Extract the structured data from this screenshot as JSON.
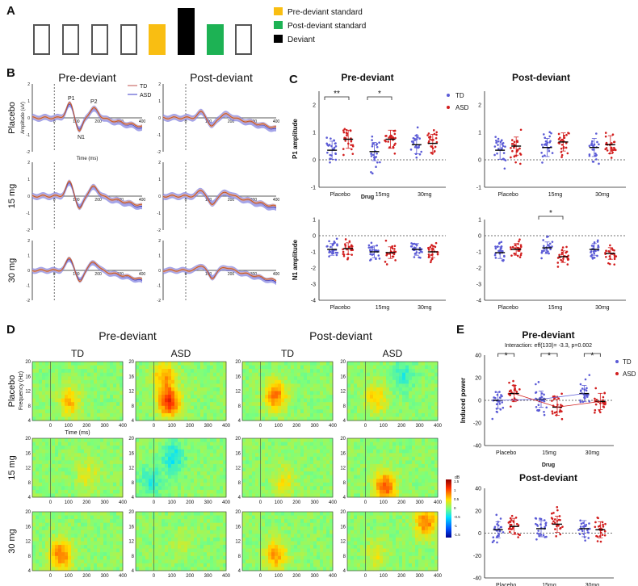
{
  "panel_a": {
    "letter": "A",
    "sequence": [
      "standard",
      "standard",
      "standard",
      "standard",
      "pre-deviant",
      "deviant",
      "post-deviant",
      "standard"
    ],
    "legend": [
      {
        "label": "Pre-deviant standard",
        "color": "#F9BE12"
      },
      {
        "label": "Post-deviant standard",
        "color": "#1DB254"
      },
      {
        "label": "Deviant",
        "color": "#000000"
      }
    ]
  },
  "panel_b": {
    "letter": "B",
    "col_titles": [
      "Pre-deviant",
      "Post-deviant"
    ],
    "rows": [
      "Placebo",
      "15 mg",
      "30 mg"
    ],
    "ylabel": "Amplitude (uV)",
    "xlabel": "Time (ms)",
    "yticks": [
      "2",
      "1",
      "0",
      "-1",
      "-2"
    ],
    "xticks": [
      "0",
      "100",
      "200",
      "300",
      "400"
    ],
    "legend": [
      {
        "label": "TD",
        "color": "#C0504D"
      },
      {
        "label": "ASD",
        "color": "#3B3BC8"
      }
    ],
    "peak_labels": [
      "P1",
      "P2",
      "N1"
    ],
    "colors": {
      "td": "#C8561E",
      "asd": "#2D2DB8",
      "asd_band": "#7E7EE0",
      "td_band": "#F0B49A"
    }
  },
  "panel_c": {
    "letter": "C",
    "titles": [
      "Pre-deviant",
      "Post-deviant"
    ],
    "xlabel": "Drug",
    "categories": [
      "Placebo",
      "15mg",
      "30mg"
    ],
    "legend": [
      {
        "label": "TD",
        "color": "#5B5BD6"
      },
      {
        "label": "ASD",
        "color": "#D21E1E"
      }
    ],
    "p1": {
      "ylabel": "P1 amplitude",
      "yticks": [
        "2",
        "1",
        "0",
        "-1"
      ],
      "ylim": [
        -1,
        2.5
      ]
    },
    "n1": {
      "ylabel": "N1 amplitude",
      "yticks": [
        "1",
        "0",
        "-1",
        "-2",
        "-3",
        "-4"
      ],
      "ylim": [
        -4,
        1
      ]
    },
    "sig": {
      "pre_p1": [
        "**",
        "*"
      ],
      "post_n1": [
        "*"
      ]
    }
  },
  "panel_d": {
    "letter": "D",
    "group_titles": [
      "Pre-deviant",
      "Post-deviant"
    ],
    "col_titles": [
      "TD",
      "ASD",
      "TD",
      "ASD"
    ],
    "rows": [
      "Placebo",
      "15 mg",
      "30 mg"
    ],
    "ylabel": "Frequency (Hz)",
    "xlabel": "Time (ms)",
    "yticks": [
      "20",
      "16",
      "12",
      "8",
      "4"
    ],
    "xticks": [
      "0",
      "100",
      "200",
      "300",
      "400"
    ],
    "colorbar": {
      "unit": "dB",
      "ticks": [
        "1.5",
        "1",
        "0.5",
        "0",
        "-0.5",
        "-1",
        "-1.5"
      ]
    }
  },
  "panel_e": {
    "letter": "E",
    "titles": [
      "Pre-deviant",
      "Post-deviant"
    ],
    "interaction": "Interaction: eff(133)= -3.3, p=0.002",
    "ylabel": "Induced power",
    "xlabel": "Drug",
    "categories": [
      "Placebo",
      "15mg",
      "30mg"
    ],
    "yticks": [
      "40",
      "20",
      "0",
      "-20",
      "-40"
    ],
    "ylim": [
      -40,
      40
    ],
    "legend": [
      {
        "label": "TD",
        "color": "#5B5BD6"
      },
      {
        "label": "ASD",
        "color": "#D21E1E"
      }
    ],
    "sig": [
      "*",
      "*",
      "*"
    ]
  },
  "chart_data": [
    {
      "type": "scatter",
      "panel": "C",
      "subplot": "Pre-deviant P1",
      "categories": [
        "Placebo",
        "15mg",
        "30mg"
      ],
      "series": [
        {
          "name": "TD",
          "means": [
            0.35,
            0.3,
            0.55
          ]
        },
        {
          "name": "ASD",
          "means": [
            0.75,
            0.75,
            0.6
          ]
        }
      ],
      "ylabel": "P1 amplitude",
      "ylim": [
        -1,
        2.5
      ]
    },
    {
      "type": "scatter",
      "panel": "C",
      "subplot": "Post-deviant P1",
      "categories": [
        "Placebo",
        "15mg",
        "30mg"
      ],
      "series": [
        {
          "name": "TD",
          "means": [
            0.35,
            0.45,
            0.45
          ]
        },
        {
          "name": "ASD",
          "means": [
            0.5,
            0.65,
            0.55
          ]
        }
      ],
      "ylabel": "P1 amplitude",
      "ylim": [
        -1,
        2.5
      ]
    },
    {
      "type": "scatter",
      "panel": "C",
      "subplot": "Pre-deviant N1",
      "categories": [
        "Placebo",
        "15mg",
        "30mg"
      ],
      "series": [
        {
          "name": "TD",
          "means": [
            -0.85,
            -1.0,
            -0.85
          ]
        },
        {
          "name": "ASD",
          "means": [
            -0.8,
            -1.05,
            -1.0
          ]
        }
      ],
      "ylabel": "N1 amplitude",
      "ylim": [
        -4,
        1
      ]
    },
    {
      "type": "scatter",
      "panel": "C",
      "subplot": "Post-deviant N1",
      "categories": [
        "Placebo",
        "15mg",
        "30mg"
      ],
      "series": [
        {
          "name": "TD",
          "means": [
            -1.05,
            -0.75,
            -0.85
          ]
        },
        {
          "name": "ASD",
          "means": [
            -0.85,
            -1.3,
            -1.1
          ]
        }
      ],
      "ylabel": "N1 amplitude",
      "ylim": [
        -4,
        1
      ]
    },
    {
      "type": "scatter",
      "panel": "E",
      "subplot": "Pre-deviant",
      "categories": [
        "Placebo",
        "15mg",
        "30mg"
      ],
      "series": [
        {
          "name": "TD",
          "means": [
            0,
            1,
            6
          ]
        },
        {
          "name": "ASD",
          "means": [
            6,
            -6,
            -1
          ]
        }
      ],
      "ylabel": "Induced power",
      "ylim": [
        -40,
        40
      ]
    },
    {
      "type": "scatter",
      "panel": "E",
      "subplot": "Post-deviant",
      "categories": [
        "Placebo",
        "15mg",
        "30mg"
      ],
      "series": [
        {
          "name": "TD",
          "means": [
            3,
            4,
            4
          ]
        },
        {
          "name": "ASD",
          "means": [
            6,
            8,
            3
          ]
        }
      ],
      "ylabel": "Induced power",
      "ylim": [
        -40,
        40
      ]
    }
  ]
}
